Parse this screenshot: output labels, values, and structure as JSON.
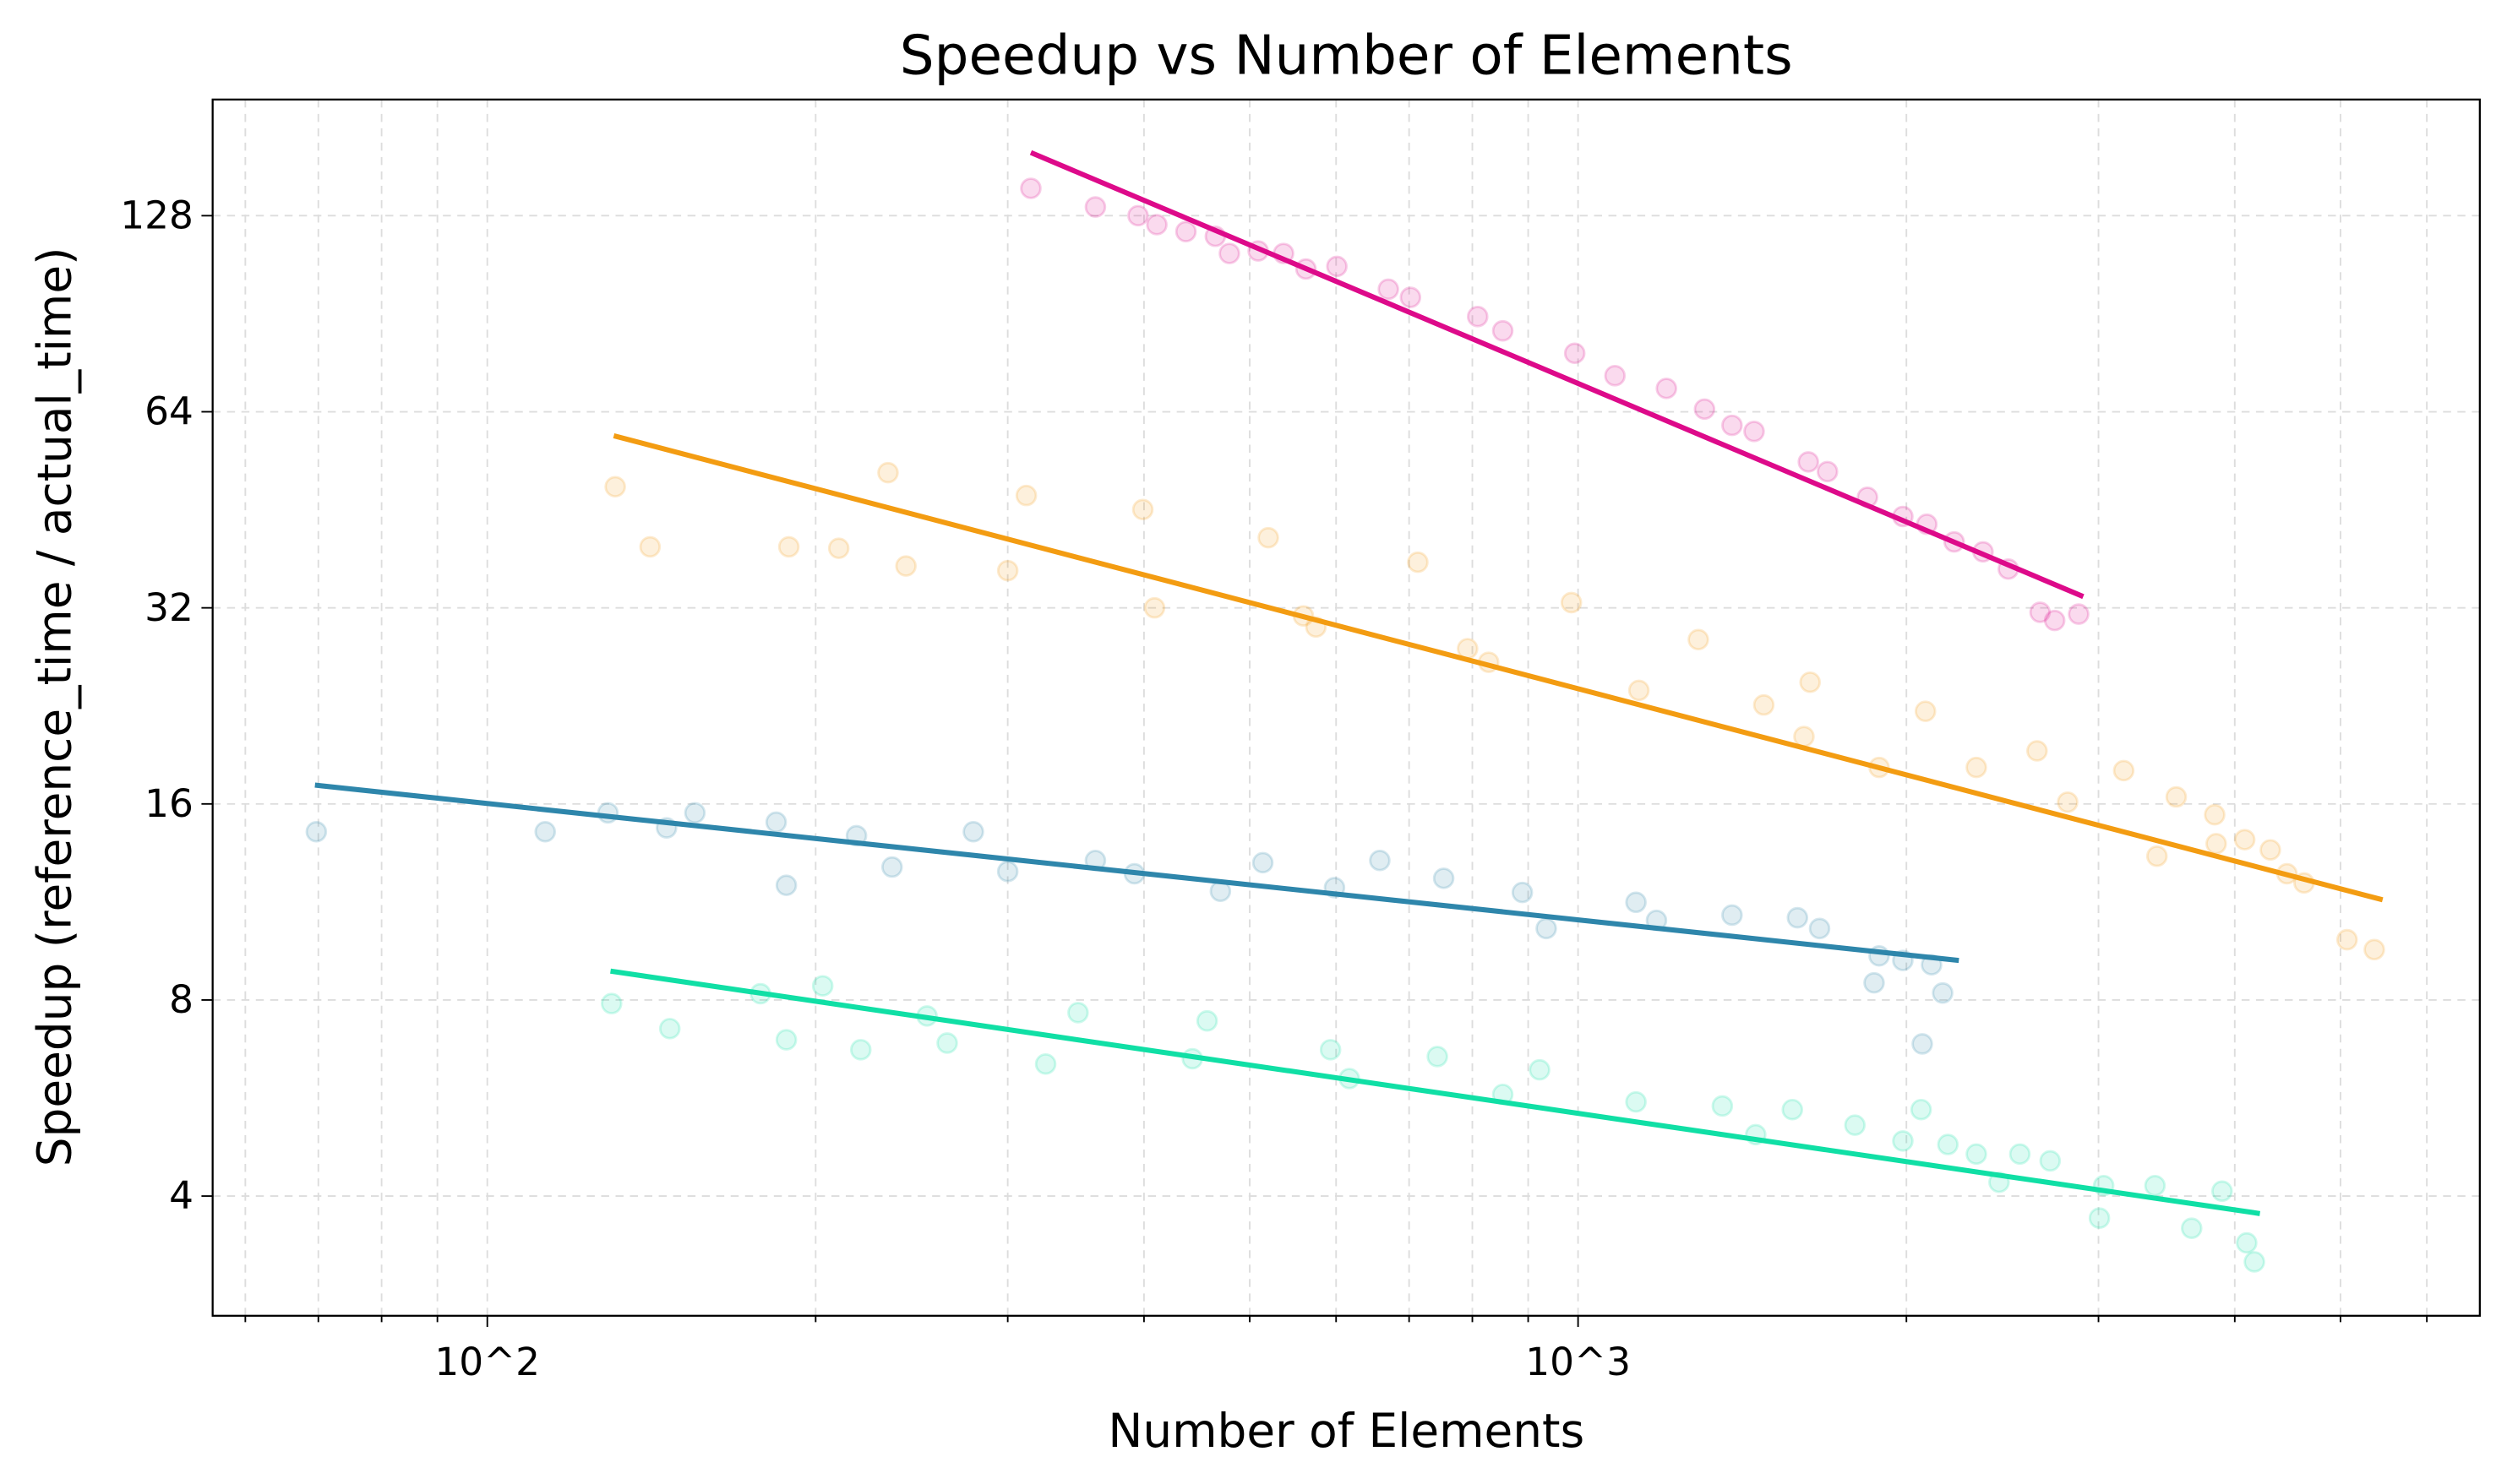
{
  "chart_data": {
    "type": "scatter",
    "title": "Speedup vs Number of Elements",
    "xlabel": "Number of Elements",
    "ylabel": "Speedup (reference_time / actual_time)",
    "xscale": "log10",
    "yscale": "log2",
    "xlim": [
      56,
      6710
    ],
    "ylim": [
      2.62,
      193
    ],
    "xticks": [
      {
        "value": 100,
        "label": "10^2"
      },
      {
        "value": 1000,
        "label": "10^3"
      }
    ],
    "yticks": [
      {
        "value": 4,
        "label": "4"
      },
      {
        "value": 8,
        "label": "8"
      },
      {
        "value": 16,
        "label": "16"
      },
      {
        "value": 32,
        "label": "32"
      },
      {
        "value": 64,
        "label": "64"
      },
      {
        "value": 128,
        "label": "128"
      }
    ],
    "grid": true,
    "series": [
      {
        "color": "#dd0a8a",
        "points": [
          [
            315,
            141
          ],
          [
            361,
            132
          ],
          [
            395,
            128
          ],
          [
            411,
            124
          ],
          [
            437,
            121
          ],
          [
            465,
            119
          ],
          [
            479,
            112
          ],
          [
            509,
            113
          ],
          [
            537,
            112
          ],
          [
            563,
            106
          ],
          [
            601,
            107
          ],
          [
            670,
            98.7
          ],
          [
            702,
            95.9
          ],
          [
            809,
            89.6
          ],
          [
            853,
            85.2
          ],
          [
            993,
            78.7
          ],
          [
            1081,
            72.7
          ],
          [
            1205,
            69.5
          ],
          [
            1306,
            64.6
          ],
          [
            1384,
            61
          ],
          [
            1450,
            59.7
          ],
          [
            1626,
            53.6
          ],
          [
            1693,
            51.8
          ],
          [
            1842,
            47.3
          ],
          [
            1985,
            44.2
          ],
          [
            2088,
            43
          ],
          [
            2212,
            40.4
          ],
          [
            2351,
            39
          ],
          [
            2480,
            36.7
          ],
          [
            2652,
            31.5
          ],
          [
            2735,
            30.6
          ],
          [
            2877,
            31.3
          ]
        ],
        "fit": [
          [
            315,
            160
          ],
          [
            2905,
            33.3
          ]
        ]
      },
      {
        "color": "#f39c12",
        "points": [
          [
            131,
            49.1
          ],
          [
            141,
            39.7
          ],
          [
            189,
            39.7
          ],
          [
            210,
            39.5
          ],
          [
            233,
            51.6
          ],
          [
            242,
            37.1
          ],
          [
            300,
            36.5
          ],
          [
            312,
            47.6
          ],
          [
            399,
            45.3
          ],
          [
            409,
            32
          ],
          [
            520,
            41
          ],
          [
            560,
            31.1
          ],
          [
            575,
            29.9
          ],
          [
            713,
            37.6
          ],
          [
            792,
            27.7
          ],
          [
            828,
            26.4
          ],
          [
            986,
            32.6
          ],
          [
            1137,
            23.9
          ],
          [
            1289,
            28.6
          ],
          [
            1480,
            22.7
          ],
          [
            1632,
            24.6
          ],
          [
            1611,
            20.3
          ],
          [
            1888,
            18.2
          ],
          [
            2082,
            22.2
          ],
          [
            2318,
            18.2
          ],
          [
            2635,
            19.3
          ],
          [
            2811,
            16.1
          ],
          [
            3164,
            18
          ],
          [
            3394,
            13.3
          ],
          [
            3535,
            16.4
          ],
          [
            3834,
            15.4
          ],
          [
            3846,
            13.9
          ],
          [
            4085,
            14.1
          ],
          [
            4312,
            13.6
          ],
          [
            4466,
            12.5
          ],
          [
            4630,
            12.1
          ],
          [
            5070,
            9.9
          ],
          [
            5370,
            9.56
          ]
        ],
        "fit": [
          [
            130.6,
            58.8
          ],
          [
            5465,
            11.4
          ]
        ]
      },
      {
        "color": "#2e86ab",
        "points": [
          [
            69.7,
            14.5
          ],
          [
            113,
            14.5
          ],
          [
            129,
            15.5
          ],
          [
            146,
            14.7
          ],
          [
            155,
            15.5
          ],
          [
            184,
            15
          ],
          [
            188,
            12
          ],
          [
            218,
            14.3
          ],
          [
            235,
            12.8
          ],
          [
            279,
            14.5
          ],
          [
            300,
            12.6
          ],
          [
            361,
            13.1
          ],
          [
            392,
            12.5
          ],
          [
            470,
            11.75
          ],
          [
            514,
            13
          ],
          [
            598,
            11.9
          ],
          [
            658,
            13.1
          ],
          [
            753,
            12.3
          ],
          [
            889,
            11.7
          ],
          [
            935,
            10.3
          ],
          [
            1130,
            11.3
          ],
          [
            1180,
            10.6
          ],
          [
            1384,
            10.8
          ],
          [
            1589,
            10.7
          ],
          [
            1665,
            10.3
          ],
          [
            1868,
            8.5
          ],
          [
            1888,
            9.35
          ],
          [
            1985,
            9.2
          ],
          [
            2068,
            6.85
          ],
          [
            2109,
            9.06
          ],
          [
            2159,
            8.2
          ]
        ],
        "fit": [
          [
            69.5,
            17.1
          ],
          [
            2234,
            9.2
          ]
        ]
      },
      {
        "color": "#10dfa5",
        "points": [
          [
            130,
            7.9
          ],
          [
            147,
            7.23
          ],
          [
            178,
            8.18
          ],
          [
            188,
            6.95
          ],
          [
            203,
            8.41
          ],
          [
            220,
            6.71
          ],
          [
            253,
            7.56
          ],
          [
            264,
            6.87
          ],
          [
            325,
            6.38
          ],
          [
            348,
            7.65
          ],
          [
            443,
            6.5
          ],
          [
            457,
            7.43
          ],
          [
            593,
            6.71
          ],
          [
            617,
            6.06
          ],
          [
            743,
            6.55
          ],
          [
            853,
            5.73
          ],
          [
            922,
            6.25
          ],
          [
            1130,
            5.58
          ],
          [
            1356,
            5.5
          ],
          [
            1455,
            4.97
          ],
          [
            1572,
            5.43
          ],
          [
            1794,
            5.14
          ],
          [
            1985,
            4.86
          ],
          [
            2063,
            5.43
          ],
          [
            2183,
            4.8
          ],
          [
            2318,
            4.64
          ],
          [
            2432,
            4.2
          ],
          [
            2541,
            4.64
          ],
          [
            2709,
            4.53
          ],
          [
            3006,
            3.7
          ],
          [
            3033,
            4.15
          ],
          [
            3380,
            4.15
          ],
          [
            3652,
            3.57
          ],
          [
            3894,
            4.07
          ],
          [
            4102,
            3.39
          ],
          [
            4169,
            3.17
          ]
        ],
        "fit": [
          [
            129.7,
            8.86
          ],
          [
            4218,
            3.76
          ]
        ]
      }
    ]
  }
}
